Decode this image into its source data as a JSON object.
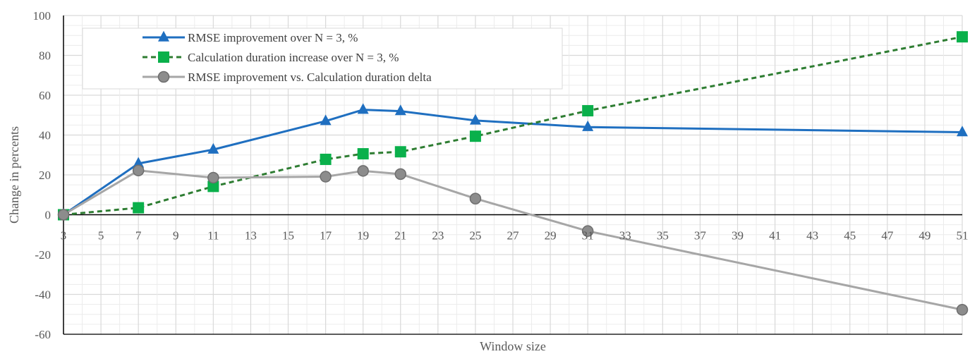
{
  "chart_data": {
    "type": "line",
    "xlabel": "Window size",
    "ylabel": "Change in percents",
    "ylim": [
      -60,
      100
    ],
    "yticks": [
      -60,
      -40,
      -20,
      0,
      20,
      40,
      60,
      80,
      100
    ],
    "xticks": [
      3,
      5,
      7,
      9,
      11,
      13,
      15,
      17,
      19,
      21,
      23,
      25,
      27,
      29,
      31,
      33,
      35,
      37,
      39,
      41,
      43,
      45,
      47,
      49,
      51
    ],
    "xlim": [
      3,
      51
    ],
    "grid": true,
    "legend_position": "top-left",
    "series": [
      {
        "name": "RMSE improvement over N = 3, %",
        "color": "#1f6fc0",
        "marker": "triangle",
        "dash": "solid",
        "x": [
          3,
          7,
          11,
          17,
          19,
          21,
          25,
          31,
          51
        ],
        "y": [
          0,
          25.7,
          32.7,
          47,
          52.7,
          52,
          47.3,
          44,
          41.4
        ]
      },
      {
        "name": "Calculation duration increase over N = 3, %",
        "color": "#0ab04b",
        "line_color": "#2e7d32",
        "marker": "square",
        "dash": "dashed",
        "x": [
          3,
          7,
          11,
          17,
          19,
          21,
          25,
          31,
          51
        ],
        "y": [
          0,
          3.5,
          14.2,
          27.8,
          30.6,
          31.6,
          39.4,
          52.2,
          89.3
        ]
      },
      {
        "name": "RMSE improvement vs. Calculation duration delta",
        "color": "#a6a6a6",
        "marker_color": "#8c8c8c",
        "marker": "circle",
        "dash": "solid",
        "x": [
          3,
          7,
          11,
          17,
          19,
          21,
          25,
          31,
          51
        ],
        "y": [
          0,
          22.2,
          18.6,
          19.1,
          22,
          20.4,
          8.1,
          -8.2,
          -47.7
        ]
      }
    ]
  }
}
